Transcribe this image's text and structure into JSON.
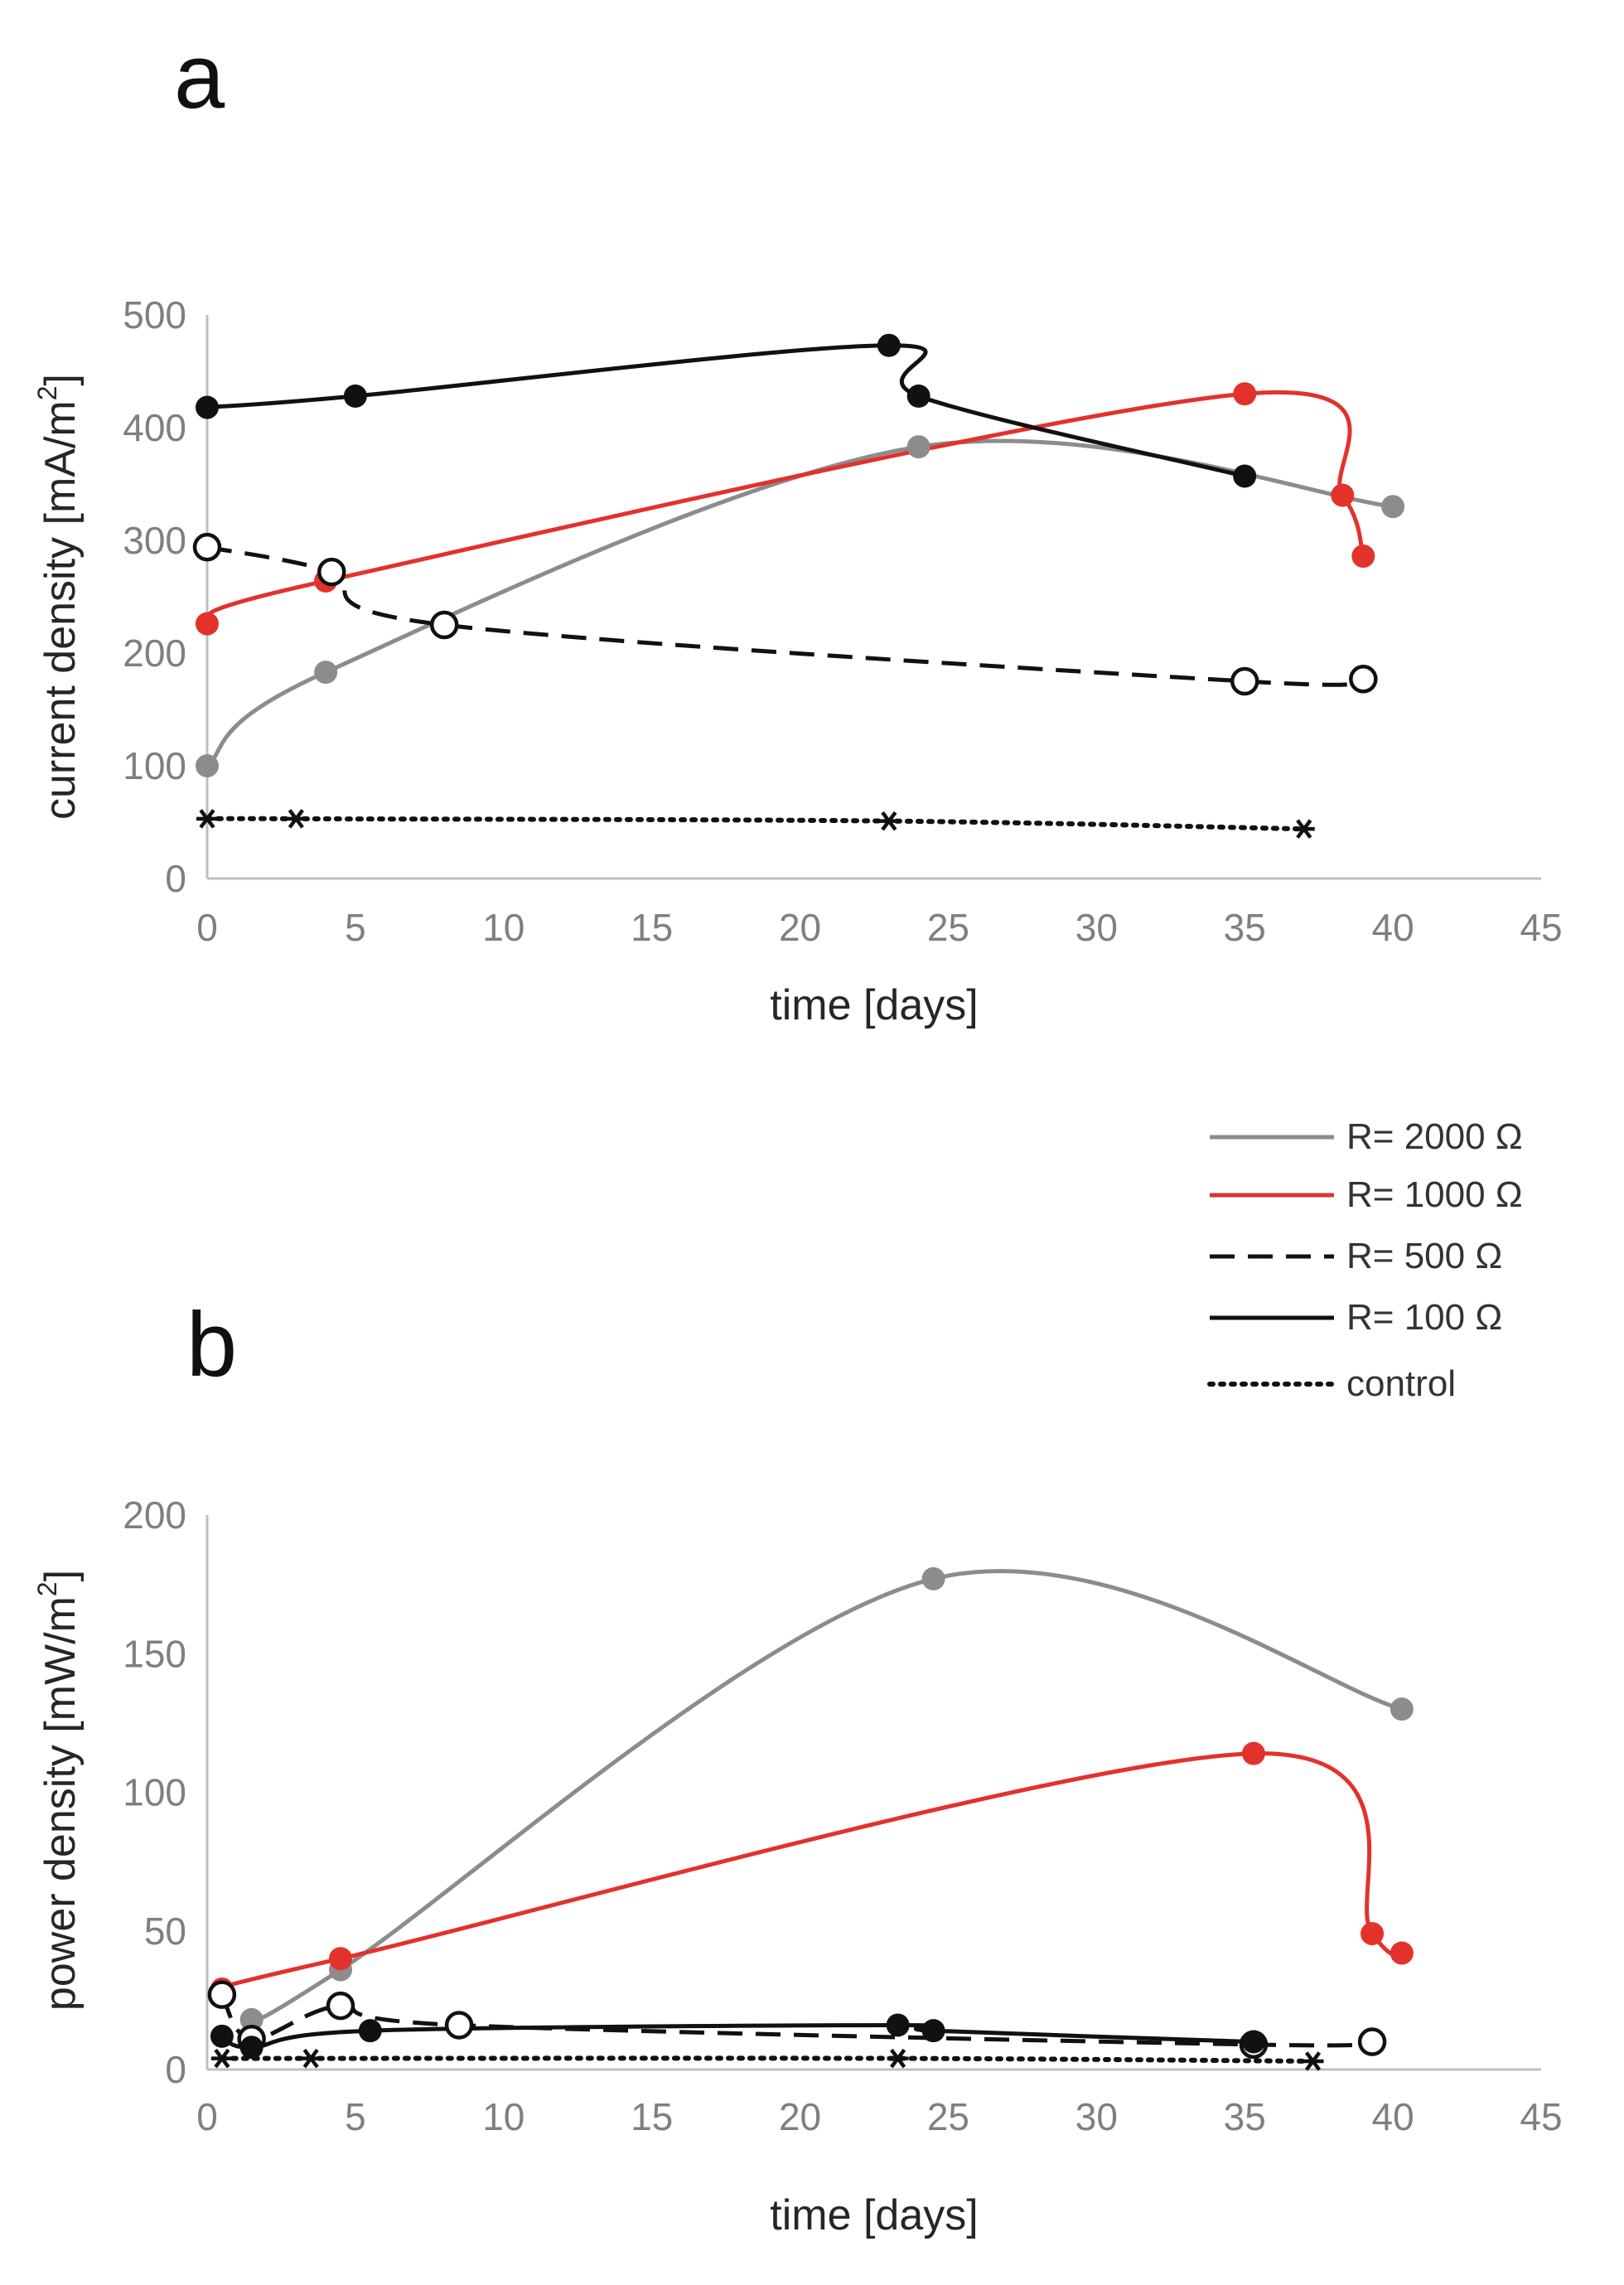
{
  "colors": {
    "r2000": "#8c8c8c",
    "r1000": "#e2322b",
    "r500": "#111111",
    "r100": "#111111",
    "control": "#111111",
    "axis": "#bfbfbf",
    "tick": "#7f7f7f"
  },
  "legend": {
    "placement": "between panels, right",
    "entries": [
      {
        "key": "r2000",
        "label": "R= 2000 Ω",
        "style": "solid",
        "color": "#8c8c8c"
      },
      {
        "key": "r1000",
        "label": "R= 1000 Ω",
        "style": "solid",
        "color": "#e2322b"
      },
      {
        "key": "r500",
        "label": "R= 500 Ω",
        "style": "dashed",
        "color": "#111111"
      },
      {
        "key": "r100",
        "label": "R= 100 Ω",
        "style": "solid",
        "color": "#111111"
      },
      {
        "key": "control",
        "label": "control",
        "style": "dotted",
        "color": "#111111"
      }
    ]
  },
  "chart_data": [
    {
      "panel": "a",
      "type": "line",
      "xlabel": "time [days]",
      "ylabel_main": "current density [mA/m",
      "ylabel_sup": "2",
      "ylabel_end": "]",
      "xlim": [
        0,
        45
      ],
      "ylim": [
        0,
        500
      ],
      "xticks": [
        0,
        5,
        10,
        15,
        20,
        25,
        30,
        35,
        40,
        45
      ],
      "yticks": [
        0,
        100,
        200,
        300,
        400,
        500
      ],
      "grid": false,
      "series": [
        {
          "key": "r2000",
          "name": "R= 2000 Ω",
          "marker": "filled",
          "x": [
            0,
            4,
            24,
            40
          ],
          "y": [
            100,
            183,
            383,
            330
          ]
        },
        {
          "key": "r1000",
          "name": "R= 1000 Ω",
          "marker": "filled",
          "x": [
            0,
            4,
            35,
            38.3,
            39
          ],
          "y": [
            226,
            264,
            430,
            340,
            286
          ]
        },
        {
          "key": "r500",
          "name": "R= 500 Ω",
          "marker": "open",
          "x": [
            0,
            4.2,
            8,
            35,
            39
          ],
          "y": [
            294,
            272,
            225,
            175,
            177
          ]
        },
        {
          "key": "r100",
          "name": "R= 100 Ω",
          "marker": "filled",
          "x": [
            0,
            5,
            23,
            24,
            35
          ],
          "y": [
            418,
            428,
            473,
            428,
            357
          ]
        },
        {
          "key": "control",
          "name": "control",
          "marker": "star",
          "x": [
            0,
            3,
            23,
            37
          ],
          "y": [
            53,
            53,
            51,
            44
          ]
        }
      ]
    },
    {
      "panel": "b",
      "type": "line",
      "xlabel": "time [days]",
      "ylabel_main": "power density [mW/m",
      "ylabel_sup": "2",
      "ylabel_end": "]",
      "xlim": [
        0,
        45
      ],
      "ylim": [
        0,
        200
      ],
      "xticks": [
        0,
        5,
        10,
        15,
        20,
        25,
        30,
        35,
        40,
        45
      ],
      "yticks": [
        0,
        50,
        100,
        150,
        200
      ],
      "grid": false,
      "series": [
        {
          "key": "r2000",
          "name": "R= 2000 Ω",
          "marker": "filled",
          "x": [
            1.5,
            4.5,
            24.5,
            40.3
          ],
          "y": [
            18,
            36,
            177,
            130
          ]
        },
        {
          "key": "r1000",
          "name": "R= 1000 Ω",
          "marker": "filled",
          "x": [
            0.5,
            4.5,
            35.3,
            39.3,
            40.3
          ],
          "y": [
            29,
            40,
            114,
            49,
            42
          ]
        },
        {
          "key": "r500",
          "name": "R= 500 Ω",
          "marker": "open",
          "x": [
            0.5,
            1.5,
            4.5,
            8.5,
            35.3,
            39.3
          ],
          "y": [
            27,
            11,
            23,
            16,
            9,
            10
          ]
        },
        {
          "key": "r100",
          "name": "R= 100 Ω",
          "marker": "filled",
          "x": [
            0.5,
            1.5,
            5.5,
            23.3,
            24.5,
            35.3
          ],
          "y": [
            12,
            8,
            14,
            16,
            14,
            10
          ]
        },
        {
          "key": "control",
          "name": "control",
          "marker": "star",
          "x": [
            0.5,
            3.5,
            23.3,
            37.3
          ],
          "y": [
            4,
            4,
            4,
            3
          ]
        }
      ]
    }
  ]
}
